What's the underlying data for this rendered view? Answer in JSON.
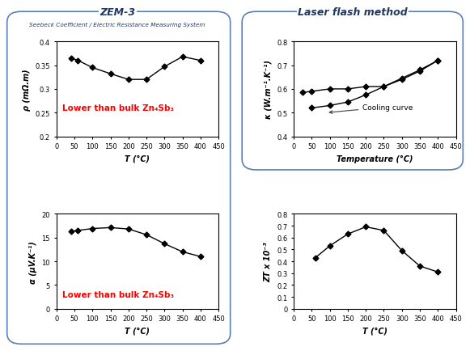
{
  "groups": [
    {
      "title": "ZEM-3",
      "subtitle": "Seebeck Coefficient / Electric Resistance Measuring System"
    },
    {
      "title": "Laser flash method"
    }
  ],
  "chart_data": [
    {
      "type": "line",
      "xlabel": "T (°C)",
      "ylabel": "ρ (mΩ.m)",
      "x": [
        40,
        60,
        100,
        150,
        200,
        250,
        300,
        350,
        400
      ],
      "series": [
        {
          "color": "#000000",
          "marker": "diamond",
          "line_style": "solid",
          "values": [
            0.365,
            0.36,
            0.345,
            0.332,
            0.32,
            0.32,
            0.347,
            0.368,
            0.36
          ]
        }
      ],
      "xlim": [
        0,
        450
      ],
      "xticks": [
        0,
        50,
        100,
        150,
        200,
        250,
        300,
        350,
        400,
        450
      ],
      "ylim": [
        0.2,
        0.4
      ],
      "yticks": [
        0.2,
        0.25,
        0.3,
        0.35,
        0.4
      ],
      "grid": false,
      "annotations": [
        "Lower than bulk Zn₄Sb₃"
      ]
    },
    {
      "type": "line",
      "xlabel": "Temperature (°C)",
      "ylabel": "κ (W.m⁻¹.K⁻¹)",
      "x": [
        25,
        50,
        100,
        150,
        200,
        250,
        300,
        350,
        400
      ],
      "series": [
        {
          "color": "#000000",
          "marker": "diamond",
          "line_style": "solid",
          "values": [
            null,
            0.52,
            0.53,
            0.545,
            0.575,
            0.61,
            0.645,
            0.68,
            0.72
          ]
        },
        {
          "color": "#000000",
          "marker": "diamond",
          "line_style": "solid",
          "values": [
            0.585,
            0.59,
            0.6,
            0.6,
            0.61,
            0.61,
            0.64,
            0.675,
            0.72
          ]
        }
      ],
      "xlim": [
        0,
        450
      ],
      "xticks": [
        0,
        50,
        100,
        150,
        200,
        250,
        300,
        350,
        400,
        450
      ],
      "ylim": [
        0.4,
        0.8
      ],
      "yticks": [
        0.4,
        0.5,
        0.6,
        0.7,
        0.8
      ],
      "grid": false,
      "annotations": [
        "Cooling curve"
      ]
    },
    {
      "type": "line",
      "xlabel": "T (°C)",
      "ylabel": "α (μV.K⁻¹)",
      "x": [
        40,
        60,
        100,
        150,
        200,
        250,
        300,
        350,
        400
      ],
      "series": [
        {
          "color": "#000000",
          "marker": "diamond",
          "line_style": "solid",
          "values": [
            16.3,
            16.5,
            16.9,
            17.1,
            16.8,
            15.6,
            13.7,
            12.0,
            11.0
          ]
        }
      ],
      "xlim": [
        0,
        450
      ],
      "xticks": [
        0,
        50,
        100,
        150,
        200,
        250,
        300,
        350,
        400,
        450
      ],
      "ylim": [
        0,
        20
      ],
      "yticks": [
        0,
        5,
        10,
        15,
        20
      ],
      "grid": false,
      "annotations": [
        "Lower than bulk Zn₄Sb₃"
      ]
    },
    {
      "type": "line",
      "xlabel": "T (°C)",
      "ylabel": "ZT x 10⁻³",
      "x": [
        60,
        100,
        150,
        200,
        250,
        300,
        350,
        400
      ],
      "series": [
        {
          "color": "#000000",
          "marker": "diamond",
          "line_style": "solid",
          "values": [
            0.43,
            0.53,
            0.63,
            0.69,
            0.66,
            0.49,
            0.36,
            0.31
          ]
        }
      ],
      "xlim": [
        0,
        450
      ],
      "xticks": [
        0,
        50,
        100,
        150,
        200,
        250,
        300,
        350,
        400,
        450
      ],
      "ylim": [
        0,
        0.8
      ],
      "yticks": [
        0,
        0.1,
        0.2,
        0.3,
        0.4,
        0.5,
        0.6,
        0.7,
        0.8
      ],
      "grid": false
    }
  ]
}
